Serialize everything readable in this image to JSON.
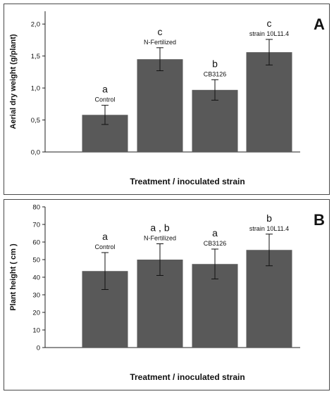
{
  "chart_data": [
    {
      "type": "bar",
      "panel_letter": "A",
      "categories": [
        "Control",
        "N-Fertilized",
        "CB3126",
        "strain 10L11.4"
      ],
      "values": [
        0.58,
        1.45,
        0.97,
        1.56
      ],
      "error": [
        0.15,
        0.18,
        0.16,
        0.2
      ],
      "significance": [
        "a",
        "c",
        "b",
        "c"
      ],
      "xlabel": "Treatment / inoculated strain",
      "ylabel": "Aerial  dry weight  (g/plant)",
      "ylim": [
        0,
        2.2
      ],
      "yticks": [
        "0,0",
        "0,5",
        "1,0",
        "1,5",
        "2,0"
      ],
      "ytick_values": [
        0,
        0.5,
        1.0,
        1.5,
        2.0
      ],
      "grid": false,
      "bar_color": "#595959"
    },
    {
      "type": "bar",
      "panel_letter": "B",
      "categories": [
        "Control",
        "N-Fertilized",
        "CB3126",
        "strain 10L11.4"
      ],
      "values": [
        43.5,
        50,
        47.5,
        55.5
      ],
      "error": [
        10.5,
        9,
        8.5,
        9
      ],
      "significance": [
        "a",
        "a , b",
        "a",
        "b"
      ],
      "xlabel": "Treatment / inoculated strain",
      "ylabel": "Plant height   ( cm )",
      "ylim": [
        0,
        80
      ],
      "yticks": [
        "0",
        "10",
        "20",
        "30",
        "40",
        "50",
        "60",
        "70",
        "80"
      ],
      "ytick_values": [
        0,
        10,
        20,
        30,
        40,
        50,
        60,
        70,
        80
      ],
      "grid": false,
      "bar_color": "#595959"
    }
  ]
}
